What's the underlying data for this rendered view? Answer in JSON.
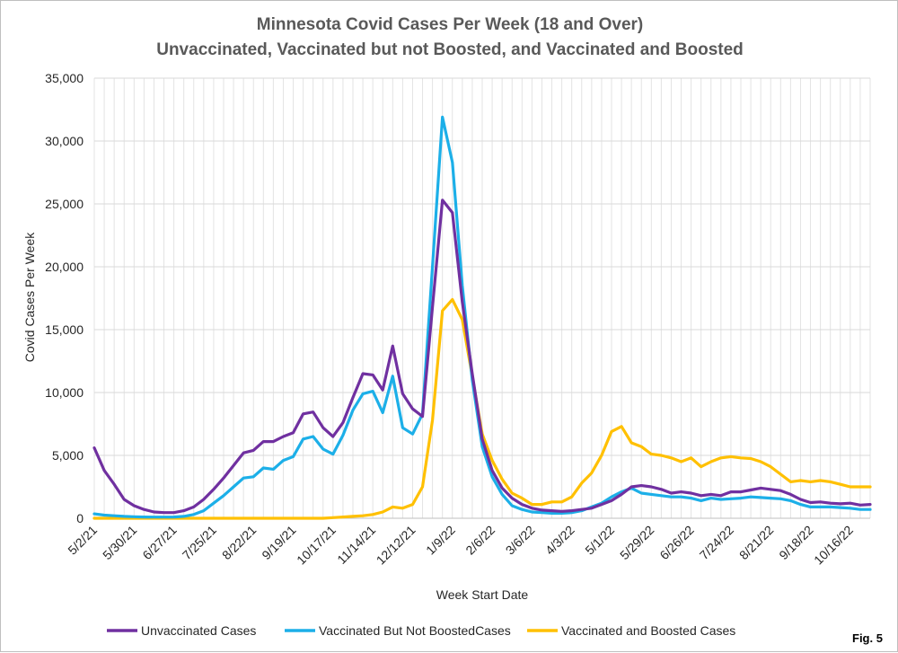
{
  "chart_data": {
    "type": "line",
    "title": "Minnesota Covid Cases Per Week (18 and Over)",
    "subtitle": "Unvaccinated, Vaccinated but not Boosted, and Vaccinated and Boosted",
    "xlabel": "Week Start Date",
    "ylabel": "Covid Cases Per Week",
    "ylim": [
      0,
      35000
    ],
    "yticks": [
      "0",
      "5,000",
      "10,000",
      "15,000",
      "20,000",
      "25,000",
      "30,000",
      "35,000"
    ],
    "ytick_values": [
      0,
      5000,
      10000,
      15000,
      20000,
      25000,
      30000,
      35000
    ],
    "xtick_labels": [
      "5/2/21",
      "5/30/21",
      "6/27/21",
      "7/25/21",
      "8/22/21",
      "9/19/21",
      "10/17/21",
      "11/14/21",
      "12/12/21",
      "1/9/22",
      "2/6/22",
      "3/6/22",
      "4/3/22",
      "5/1/22",
      "5/29/22",
      "6/26/22",
      "7/24/22",
      "8/21/22",
      "9/18/22",
      "10/16/22"
    ],
    "grid": true,
    "legend_position": "bottom",
    "fig_label": "Fig. 5",
    "series": [
      {
        "name": "Unvaccinated Cases",
        "color": "#7030A0",
        "values": [
          5600,
          3800,
          2700,
          1500,
          1000,
          700,
          500,
          450,
          450,
          600,
          900,
          1500,
          2300,
          3200,
          4200,
          5200,
          5400,
          6100,
          6100,
          6500,
          6800,
          8300,
          8450,
          7200,
          6500,
          7600,
          9600,
          11500,
          11400,
          10200,
          13700,
          9900,
          8700,
          8100,
          16800,
          25300,
          24300,
          17200,
          11500,
          6300,
          3800,
          2400,
          1600,
          1100,
          800,
          650,
          600,
          550,
          600,
          700,
          800,
          1100,
          1400,
          1900,
          2500,
          2600,
          2500,
          2300,
          2000,
          2100,
          2000,
          1800,
          1900,
          1800,
          2100,
          2100,
          2250,
          2400,
          2300,
          2200,
          1900,
          1500,
          1250,
          1300,
          1200,
          1150,
          1200,
          1050,
          1100
        ]
      },
      {
        "name": "Vaccinated But Not BoostedCases",
        "color": "#1CAFE8",
        "values": [
          350,
          250,
          200,
          150,
          120,
          100,
          90,
          90,
          100,
          150,
          300,
          600,
          1200,
          1800,
          2500,
          3200,
          3300,
          4000,
          3900,
          4600,
          4900,
          6300,
          6500,
          5500,
          5100,
          6600,
          8600,
          9900,
          10100,
          8400,
          11300,
          7200,
          6700,
          8300,
          20000,
          31900,
          28300,
          18500,
          11000,
          5700,
          3300,
          1900,
          1000,
          700,
          500,
          450,
          400,
          400,
          450,
          600,
          900,
          1200,
          1700,
          2100,
          2400,
          2000,
          1900,
          1800,
          1700,
          1700,
          1600,
          1400,
          1600,
          1500,
          1550,
          1600,
          1700,
          1650,
          1600,
          1550,
          1400,
          1100,
          900,
          900,
          900,
          850,
          800,
          700,
          700
        ]
      },
      {
        "name": "Vaccinated and Boosted Cases",
        "color": "#FFC000",
        "values": [
          0,
          0,
          0,
          0,
          0,
          0,
          0,
          0,
          0,
          0,
          0,
          0,
          0,
          0,
          0,
          0,
          0,
          0,
          0,
          0,
          0,
          0,
          0,
          0,
          50,
          100,
          150,
          200,
          300,
          500,
          900,
          800,
          1100,
          2500,
          7800,
          16500,
          17400,
          15800,
          11300,
          6700,
          4600,
          3100,
          2000,
          1600,
          1100,
          1100,
          1300,
          1300,
          1700,
          2800,
          3600,
          5000,
          6900,
          7300,
          6000,
          5700,
          5100,
          5000,
          4800,
          4500,
          4800,
          4100,
          4500,
          4800,
          4900,
          4800,
          4750,
          4500,
          4100,
          3500,
          2900,
          3000,
          2900,
          3000,
          2900,
          2700,
          2500,
          2500,
          2500
        ]
      }
    ]
  }
}
